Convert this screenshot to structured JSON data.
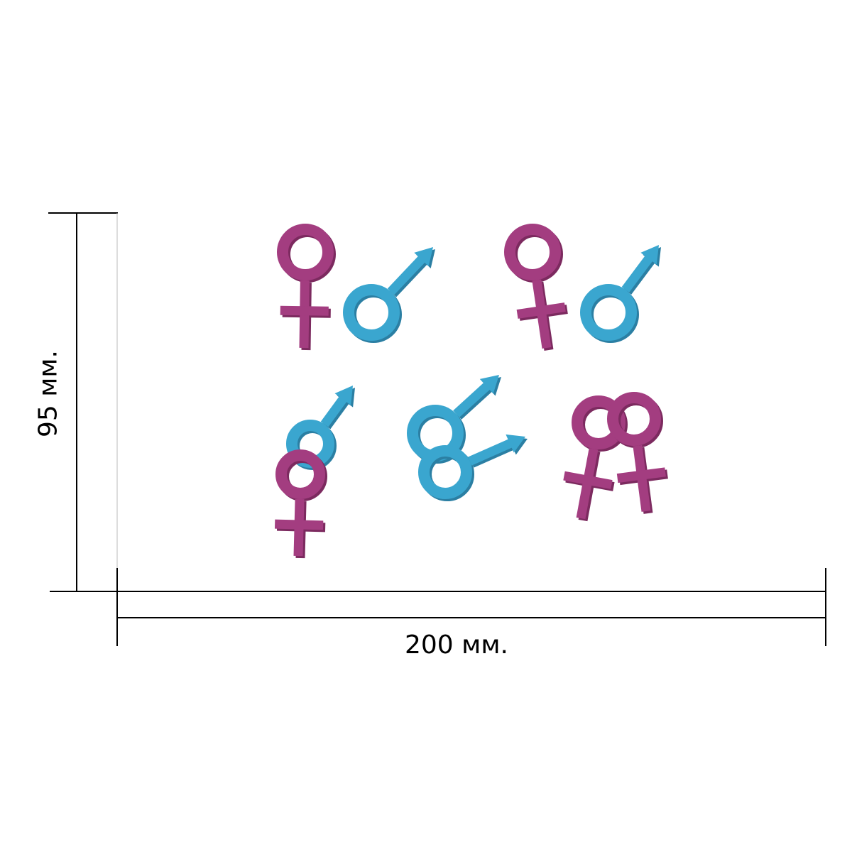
{
  "dimensions": {
    "width_label": "200 мм.",
    "height_label": "95 мм."
  },
  "colors": {
    "female": "#a33d80",
    "female_shade": "#7c2a5f",
    "male": "#3aa6cf",
    "male_shade": "#2b7fa3",
    "line": "#000000"
  },
  "symbols": [
    {
      "type": "female-symbol-icon"
    },
    {
      "type": "male-symbol-icon"
    },
    {
      "type": "female-symbol-icon"
    },
    {
      "type": "male-symbol-icon"
    },
    {
      "type": "male-symbol-icon"
    },
    {
      "type": "female-symbol-icon"
    },
    {
      "type": "male-symbol-icon"
    },
    {
      "type": "male-symbol-icon"
    },
    {
      "type": "female-symbol-icon"
    },
    {
      "type": "female-symbol-icon"
    }
  ]
}
